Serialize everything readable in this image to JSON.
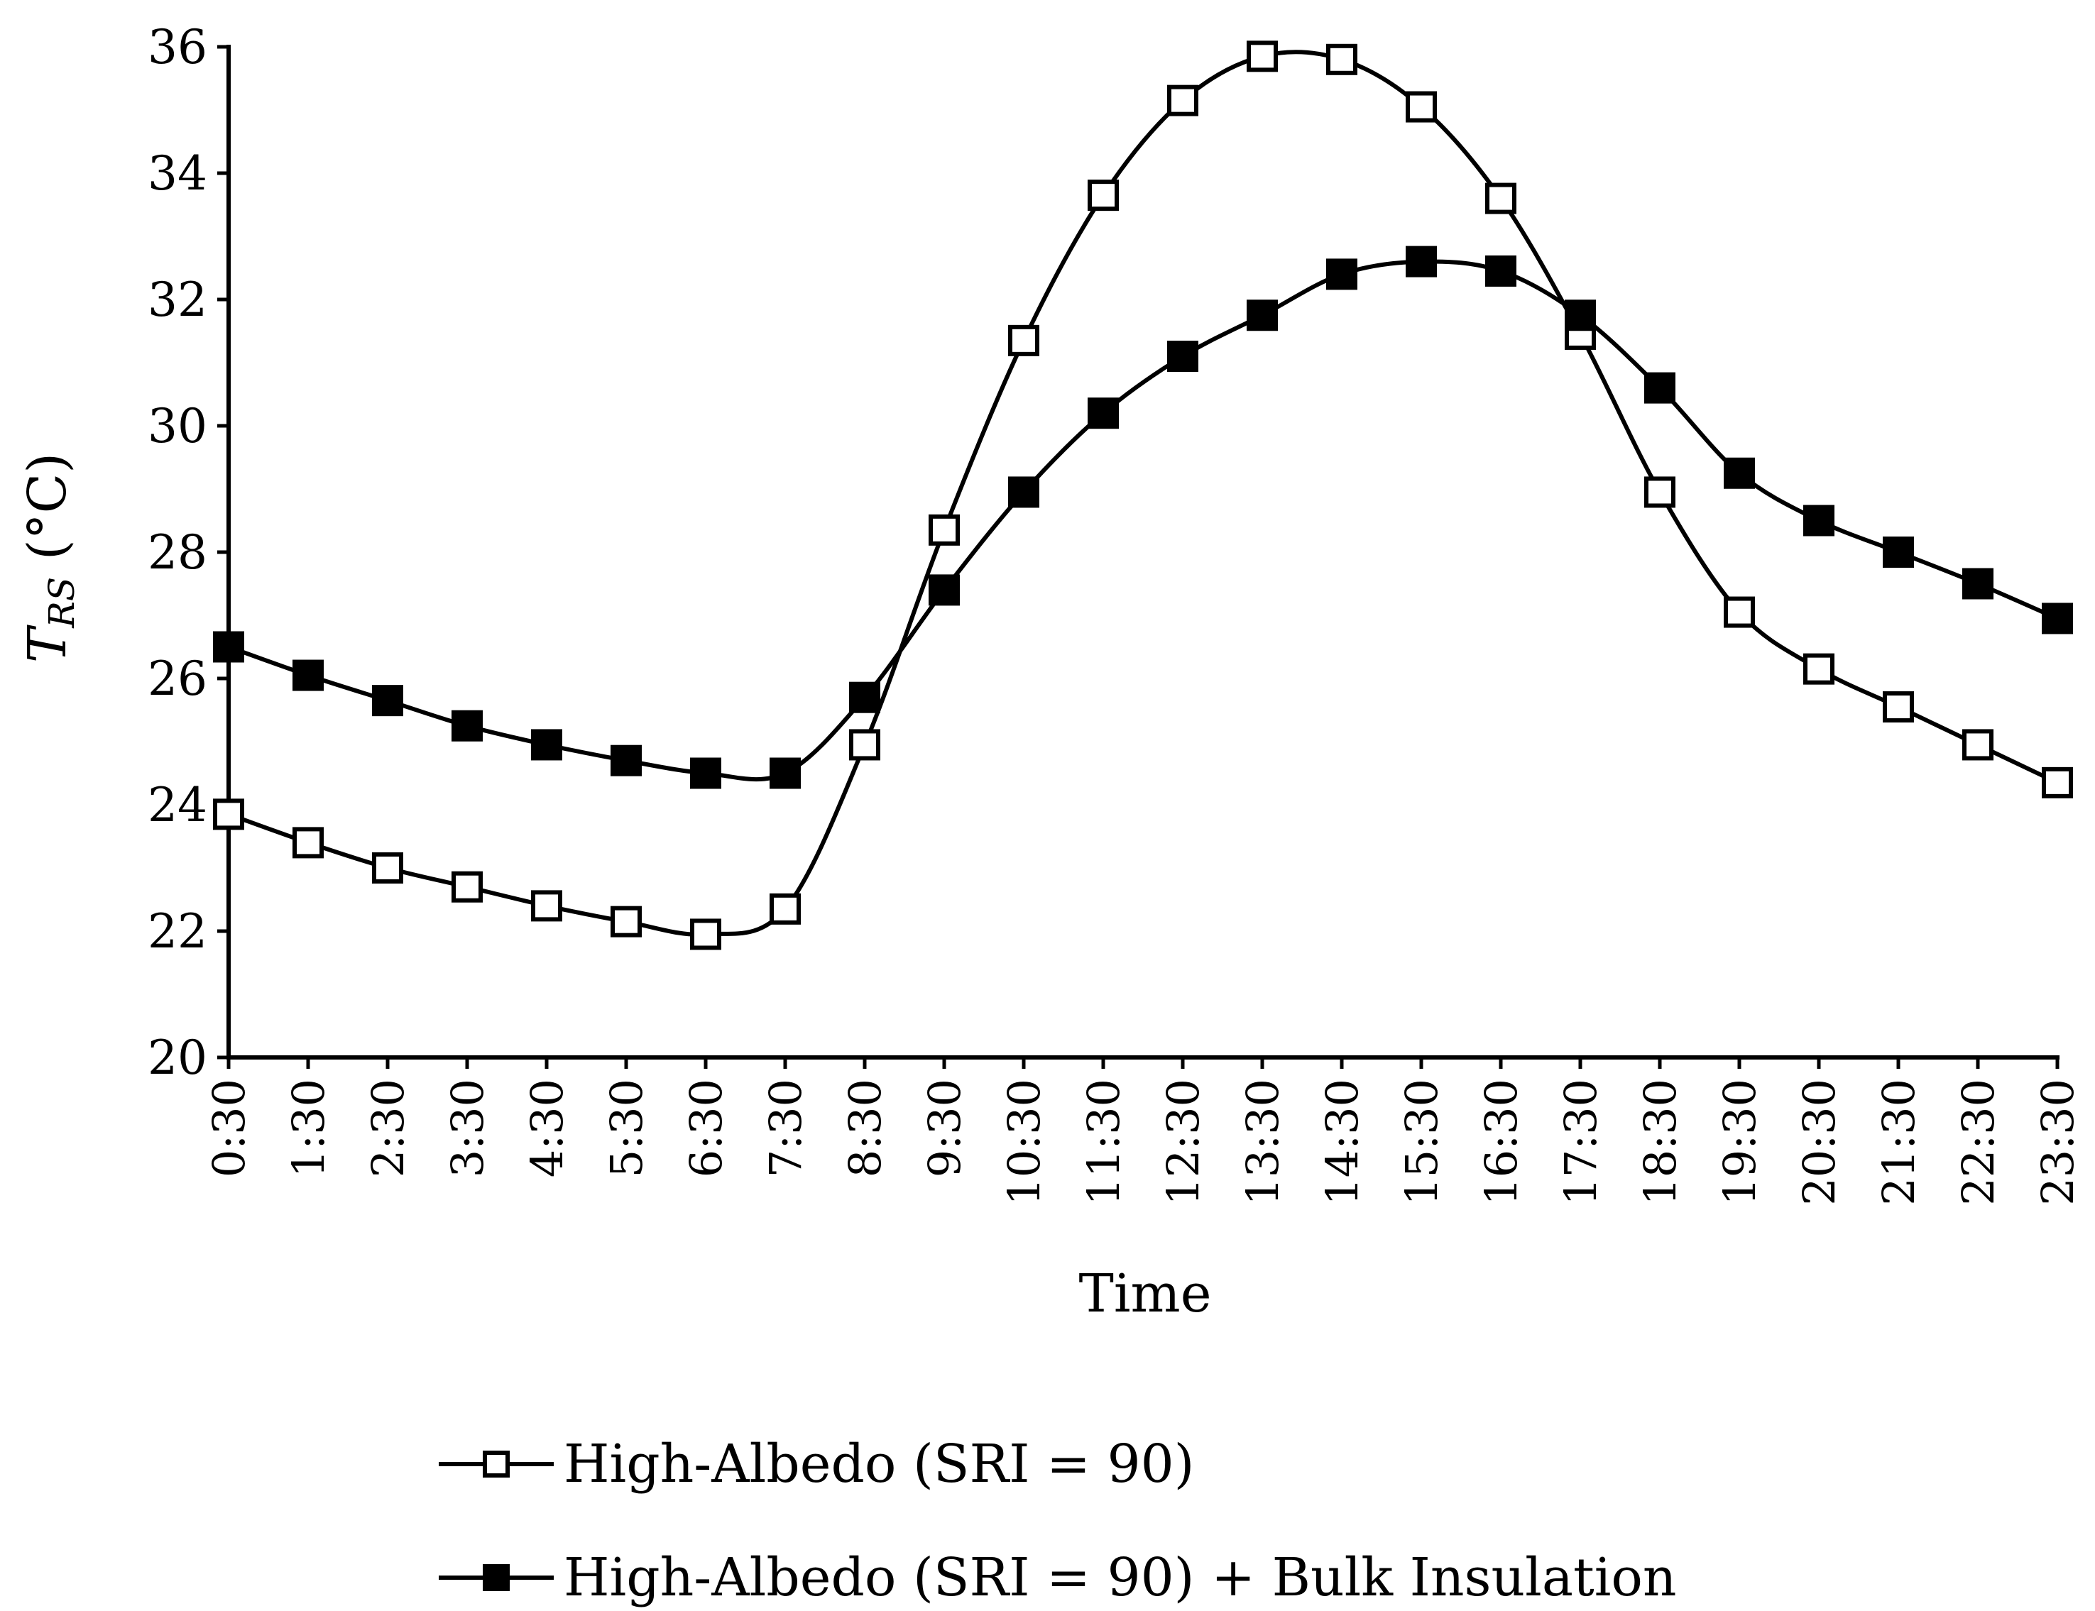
{
  "chart_data": {
    "type": "line",
    "title": "",
    "xlabel": "Time",
    "ylabel": {
      "symbol": "T",
      "subscript": "RS",
      "unit": " (°C)"
    },
    "ylim": [
      20,
      36
    ],
    "yticks": [
      "20",
      "22",
      "24",
      "26",
      "28",
      "30",
      "32",
      "34",
      "36"
    ],
    "categories": [
      "0:30",
      "1:30",
      "2:30",
      "3:30",
      "4:30",
      "5:30",
      "6:30",
      "7:30",
      "8:30",
      "9:30",
      "10:30",
      "11:30",
      "12:30",
      "13:30",
      "14:30",
      "15:30",
      "16:30",
      "17:30",
      "18:30",
      "19:30",
      "20:30",
      "21:30",
      "22:30",
      "23:30"
    ],
    "grid": false,
    "legend_position": "bottom",
    "series": [
      {
        "name": "High-Albedo (SRI = 90)",
        "marker": "open-square",
        "values": [
          23.85,
          23.4,
          23.0,
          22.7,
          22.4,
          22.15,
          21.95,
          22.35,
          24.95,
          28.35,
          31.35,
          33.65,
          35.15,
          35.85,
          35.8,
          35.05,
          33.6,
          31.45,
          28.95,
          27.05,
          26.15,
          25.55,
          24.95,
          24.35
        ]
      },
      {
        "name": "High-Albedo (SRI = 90) + Bulk Insulation",
        "marker": "filled-square",
        "values": [
          26.5,
          26.05,
          25.65,
          25.25,
          24.95,
          24.7,
          24.5,
          24.5,
          25.7,
          27.4,
          28.95,
          30.2,
          31.1,
          31.75,
          32.4,
          32.6,
          32.45,
          31.75,
          30.6,
          29.25,
          28.5,
          28.0,
          27.5,
          26.95
        ]
      }
    ]
  },
  "colors": {
    "line": "#000000",
    "open_marker_fill": "#ffffff",
    "filled_marker_fill": "#000000"
  }
}
